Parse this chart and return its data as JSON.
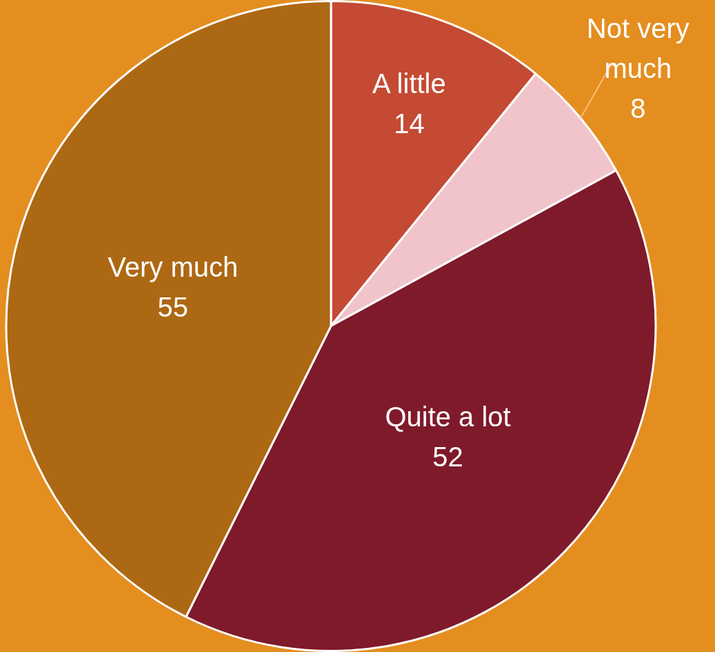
{
  "chart_data": {
    "type": "pie",
    "categories": [
      "A little",
      "Not very much",
      "Quite a lot",
      "Very much"
    ],
    "values": [
      14,
      8,
      52,
      55
    ],
    "colors": [
      "#c44a33",
      "#f0c4ca",
      "#7f1a2a",
      "#ad6813"
    ],
    "data_labels": true
  }
}
